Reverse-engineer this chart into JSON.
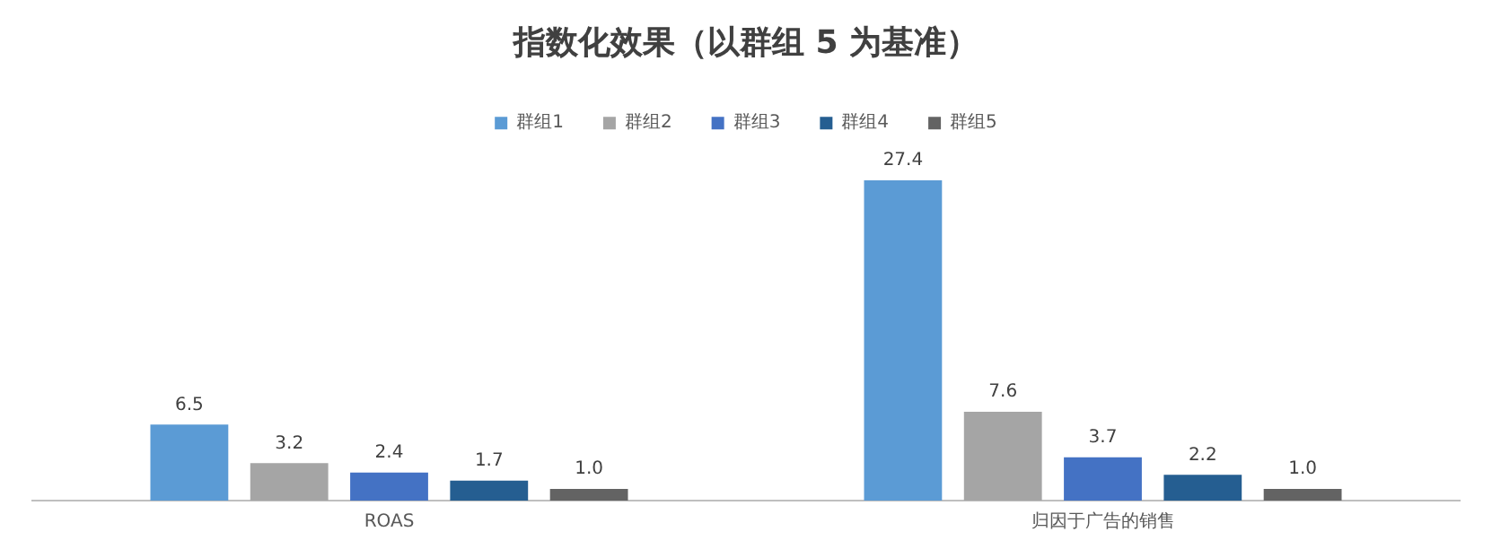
{
  "chart_data": {
    "type": "bar",
    "title": "指数化效果（以群组 5 为基准）",
    "categories": [
      "ROAS",
      "归因于广告的销售"
    ],
    "series": [
      {
        "name": "群组1",
        "color": "#5b9bd5",
        "values": [
          6.5,
          27.4
        ],
        "value_labels": [
          "6.5",
          "27.4"
        ]
      },
      {
        "name": "群组2",
        "color": "#a5a5a5",
        "values": [
          3.2,
          7.6
        ],
        "value_labels": [
          "3.2",
          "7.6"
        ]
      },
      {
        "name": "群组3",
        "color": "#4472c4",
        "values": [
          2.4,
          3.7
        ],
        "value_labels": [
          "2.4",
          "3.7"
        ]
      },
      {
        "name": "群组4",
        "color": "#255e91",
        "values": [
          1.7,
          2.2
        ],
        "value_labels": [
          "1.7",
          "2.2"
        ]
      },
      {
        "name": "群组5",
        "color": "#636363",
        "values": [
          1.0,
          1.0
        ],
        "value_labels": [
          "1.0",
          "1.0"
        ]
      }
    ],
    "legend": "top",
    "grid": false,
    "tick_labels": "x"
  }
}
